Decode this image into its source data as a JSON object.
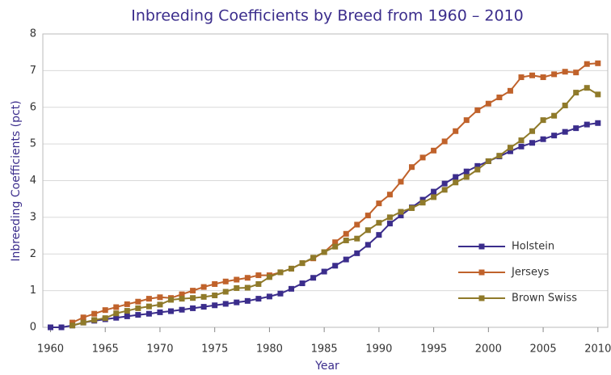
{
  "chart_data": {
    "type": "line",
    "title": "Inbreeding Coefficients by Breed from 1960 – 2010",
    "x_label": "Year",
    "y_label": "Inbreeding Coefficients  (pct)",
    "x": [
      1960,
      1961,
      1962,
      1963,
      1964,
      1965,
      1966,
      1967,
      1968,
      1969,
      1970,
      1971,
      1972,
      1973,
      1974,
      1975,
      1976,
      1977,
      1978,
      1979,
      1980,
      1981,
      1982,
      1983,
      1984,
      1985,
      1986,
      1987,
      1988,
      1989,
      1990,
      1991,
      1992,
      1993,
      1994,
      1995,
      1996,
      1997,
      1998,
      1999,
      2000,
      2001,
      2002,
      2003,
      2004,
      2005,
      2006,
      2007,
      2008,
      2009,
      2010
    ],
    "series": [
      {
        "name": "Holstein",
        "color": "#3b2d8c",
        "values": [
          0,
          0,
          0.05,
          0.13,
          0.18,
          0.22,
          0.26,
          0.3,
          0.34,
          0.37,
          0.41,
          0.44,
          0.48,
          0.52,
          0.56,
          0.6,
          0.64,
          0.68,
          0.72,
          0.78,
          0.84,
          0.92,
          1.05,
          1.2,
          1.35,
          1.52,
          1.68,
          1.85,
          2.02,
          2.25,
          2.52,
          2.83,
          3.05,
          3.27,
          3.48,
          3.7,
          3.92,
          4.1,
          4.25,
          4.4,
          4.53,
          4.66,
          4.8,
          4.93,
          5.03,
          5.13,
          5.23,
          5.33,
          5.43,
          5.53,
          5.57
        ]
      },
      {
        "name": "Jerseys",
        "color": "#c0622b",
        "values": [
          null,
          null,
          0.13,
          0.27,
          0.37,
          0.47,
          0.55,
          0.63,
          0.7,
          0.78,
          0.82,
          0.8,
          0.9,
          1.0,
          1.1,
          1.18,
          1.25,
          1.3,
          1.35,
          1.42,
          1.42,
          1.5,
          1.6,
          1.75,
          1.88,
          2.05,
          2.32,
          2.55,
          2.8,
          3.05,
          3.38,
          3.62,
          3.97,
          4.37,
          4.63,
          4.82,
          5.07,
          5.35,
          5.65,
          5.92,
          6.1,
          6.27,
          6.45,
          6.82,
          6.87,
          6.82,
          6.9,
          6.97,
          6.95,
          7.18,
          7.2
        ]
      },
      {
        "name": "Brown Swiss",
        "color": "#8f7a2a",
        "values": [
          null,
          null,
          0.05,
          0.13,
          0.2,
          0.25,
          0.38,
          0.45,
          0.52,
          0.57,
          0.62,
          0.75,
          0.78,
          0.8,
          0.83,
          0.87,
          0.97,
          1.07,
          1.08,
          1.18,
          1.37,
          1.5,
          1.6,
          1.75,
          1.9,
          2.05,
          2.2,
          2.37,
          2.42,
          2.65,
          2.85,
          3.0,
          3.15,
          3.25,
          3.4,
          3.55,
          3.75,
          3.95,
          4.1,
          4.3,
          4.53,
          4.68,
          4.9,
          5.1,
          5.35,
          5.65,
          5.77,
          6.05,
          6.4,
          6.53,
          6.35
        ]
      }
    ],
    "xlim": [
      1959.3,
      2010.9
    ],
    "xticks": [
      1960,
      1965,
      1970,
      1975,
      1980,
      1985,
      1990,
      1995,
      2000,
      2005,
      2010
    ],
    "ylim": [
      0,
      8
    ],
    "yticks": [
      0,
      1,
      2,
      3,
      4,
      5,
      6,
      7,
      8
    ],
    "grid": true,
    "legend": "lower right"
  }
}
